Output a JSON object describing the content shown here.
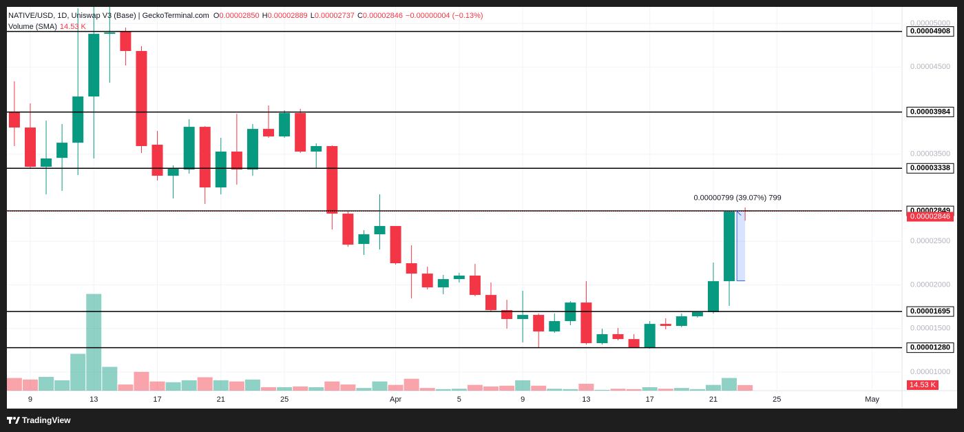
{
  "header": {
    "ohlc_letters": [
      "O",
      "H",
      "L",
      "C"
    ],
    "ohlc_values": [
      "0.00002850",
      "0.00002889",
      "0.00002737",
      "0.00002846"
    ],
    "change": "−0.00000004 (−0.13%)",
    "volume_name": "Volume (SMA)",
    "volume_value": "14.53 K"
  },
  "footer": {
    "brand": "TradingView"
  },
  "chart_data": {
    "type": "candlestick",
    "title": "NATIVE/USD, 1D, Uniswap V3 (Base) | GeckoTerminal.com",
    "categories": [
      null,
      "9",
      null,
      null,
      null,
      "13",
      null,
      null,
      null,
      "17",
      null,
      null,
      null,
      "21",
      null,
      null,
      null,
      "25",
      null,
      null,
      null,
      null,
      null,
      null,
      "Apr",
      null,
      null,
      null,
      "5",
      null,
      null,
      null,
      "9",
      null,
      null,
      null,
      "13",
      null,
      null,
      null,
      "17",
      null,
      null,
      null,
      "21",
      null,
      null,
      null,
      "25",
      null,
      null,
      null,
      null,
      null,
      "May",
      null
    ],
    "open": [
      3.98e-05,
      3.806e-05,
      3.356e-05,
      3.458e-05,
      3.632e-05,
      4.162e-05,
      4.881e-05,
      4.905e-05,
      4.684e-05,
      3.609e-05,
      3.253e-05,
      3.324e-05,
      3.814e-05,
      3.119e-05,
      3.53e-05,
      3.324e-05,
      3.79e-05,
      3.704e-05,
      3.972e-05,
      3.53e-05,
      3.593e-05,
      2.818e-05,
      2.47e-05,
      2.581e-05,
      2.676e-05,
      2.249e-05,
      2.13e-05,
      1.972e-05,
      2.067e-05,
      2.107e-05,
      1.885e-05,
      1.711e-05,
      1.609e-05,
      1.656e-05,
      1.466e-05,
      1.585e-05,
      1.798e-05,
      1.332e-05,
      1.435e-05,
      1.379e-05,
      1.285e-05,
      1.553e-05,
      1.53e-05,
      1.64e-05,
      1.688e-05,
      2.043e-05,
      2.85e-05,
      null,
      null,
      null,
      null,
      null,
      null,
      null,
      null,
      null
    ],
    "high": [
      4.336e-05,
      4.083e-05,
      3.885e-05,
      3.846e-05,
      5.174e-05,
      5.19e-05,
      5.19e-05,
      4.953e-05,
      4.739e-05,
      3.767e-05,
      3.372e-05,
      3.901e-05,
      3.822e-05,
      3.688e-05,
      3.964e-05,
      3.846e-05,
      4.059e-05,
      4.004e-05,
      4.02e-05,
      3.624e-05,
      3.601e-05,
      2.842e-05,
      2.628e-05,
      3.039e-05,
      2.676e-05,
      2.455e-05,
      2.209e-05,
      2.115e-05,
      2.138e-05,
      2.241e-05,
      2.028e-05,
      1.83e-05,
      1.933e-05,
      1.672e-05,
      1.672e-05,
      1.814e-05,
      2.043e-05,
      1.498e-05,
      1.506e-05,
      1.435e-05,
      1.585e-05,
      1.617e-05,
      1.672e-05,
      1.688e-05,
      2.257e-05,
      2.842e-05,
      2.889e-05,
      null,
      null,
      null,
      null,
      null,
      null,
      null,
      null,
      null
    ],
    "low": [
      3.593e-05,
      3.332e-05,
      3.039e-05,
      3.079e-05,
      3.261e-05,
      3.451e-05,
      4.32e-05,
      4.518e-05,
      3.514e-05,
      3.198e-05,
      2.992e-05,
      3.277e-05,
      2.929e-05,
      3.039e-05,
      3.15e-05,
      3.253e-05,
      3.688e-05,
      3.688e-05,
      3.514e-05,
      3.332e-05,
      2.636e-05,
      2.439e-05,
      2.344e-05,
      2.407e-05,
      2.233e-05,
      1.846e-05,
      1.949e-05,
      1.893e-05,
      2.028e-05,
      1.87e-05,
      1.696e-05,
      1.498e-05,
      1.34e-05,
      1.277e-05,
      1.451e-05,
      1.538e-05,
      1.316e-05,
      1.316e-05,
      1.364e-05,
      1.277e-05,
      1.269e-05,
      1.49e-05,
      1.514e-05,
      1.625e-05,
      1.672e-05,
      1.759e-05,
      2.737e-05,
      null,
      null,
      null,
      null,
      null,
      null,
      null,
      null,
      null
    ],
    "close": [
      3.806e-05,
      3.356e-05,
      3.451e-05,
      3.632e-05,
      4.162e-05,
      4.881e-05,
      4.897e-05,
      4.684e-05,
      3.593e-05,
      3.253e-05,
      3.332e-05,
      3.814e-05,
      3.119e-05,
      3.53e-05,
      3.324e-05,
      3.79e-05,
      3.704e-05,
      3.972e-05,
      3.53e-05,
      3.593e-05,
      2.818e-05,
      2.462e-05,
      2.581e-05,
      2.676e-05,
      2.249e-05,
      2.13e-05,
      1.972e-05,
      2.067e-05,
      2.107e-05,
      1.885e-05,
      1.711e-05,
      1.609e-05,
      1.656e-05,
      1.466e-05,
      1.585e-05,
      1.798e-05,
      1.332e-05,
      1.435e-05,
      1.379e-05,
      1.285e-05,
      1.553e-05,
      1.53e-05,
      1.64e-05,
      1.688e-05,
      2.043e-05,
      2.842e-05,
      2.846e-05,
      null,
      null,
      null,
      null,
      null,
      null,
      null,
      null,
      null
    ],
    "volume": {
      "values": [
        33,
        29,
        36,
        27,
        96,
        252,
        62,
        16,
        49,
        24,
        22,
        27,
        35,
        27,
        24,
        29,
        9,
        9,
        11,
        9,
        24,
        16,
        7,
        24,
        15,
        31,
        7,
        4,
        5,
        15,
        11,
        13,
        27,
        13,
        5,
        4,
        18,
        2,
        5,
        4,
        9,
        5,
        7,
        4,
        15,
        33,
        14.53,
        null,
        null,
        null,
        null,
        null,
        null,
        null,
        null,
        null
      ],
      "ylim": [
        0,
        1000
      ],
      "value_label": "14.53 K"
    },
    "ylim": [
      7.87e-06,
      5.19e-05
    ],
    "yticks": [
      {
        "value": 5e-05,
        "label": "0.00005000"
      },
      {
        "value": 4.5e-05,
        "label": "0.00004500"
      },
      {
        "value": 3.5e-05,
        "label": "0.00003500"
      },
      {
        "value": 2.5e-05,
        "label": "0.00002500"
      },
      {
        "value": 2e-05,
        "label": "0.00002000"
      },
      {
        "value": 1.5e-05,
        "label": "0.00001500"
      },
      {
        "value": 1e-05,
        "label": "0.00001000"
      }
    ],
    "grid": true,
    "up_color": "#089981",
    "down_color": "#f23645",
    "hlines": [
      {
        "value": 4.908e-05,
        "label": "0.00004908"
      },
      {
        "value": 3.984e-05,
        "label": "0.00003984"
      },
      {
        "value": 3.338e-05,
        "label": "0.00003338"
      },
      {
        "value": 2.849e-05,
        "label": "0.00002849"
      },
      {
        "value": 1.695e-05,
        "label": "0.00001695"
      },
      {
        "value": 1.28e-05,
        "label": "0.00001280"
      }
    ],
    "last_price": {
      "value": 2.846e-05,
      "label": "0.00002846"
    },
    "measure": {
      "from": 2.047e-05,
      "to": 2.846e-05,
      "label": "0.00000799 (39.07%) 799"
    }
  }
}
